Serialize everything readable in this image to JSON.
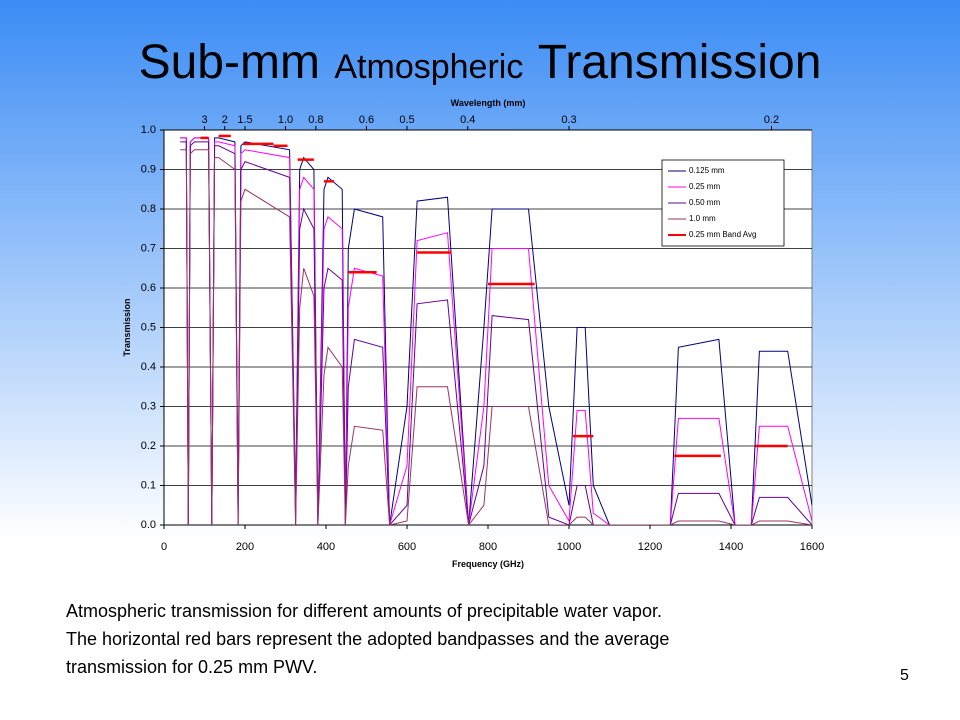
{
  "slide": {
    "title_parts": [
      "Sub-mm",
      "Atmospheric",
      "Transmission"
    ],
    "caption": [
      "Atmospheric transmission for different amounts of precipitable water vapor.",
      "The horizontal red bars represent the adopted bandpasses and the average",
      "transmission for 0.25 mm PWV."
    ],
    "page_number": "5"
  },
  "chart_data": {
    "type": "line",
    "x_label": "Frequency (GHz)",
    "y_label": "Transmission",
    "x2_label": "Wavelength (mm)",
    "xlim": [
      0,
      1600
    ],
    "xticks": [
      0,
      200,
      400,
      600,
      800,
      1000,
      1200,
      1400,
      1600
    ],
    "ylim": [
      0,
      1
    ],
    "yticks": [
      {
        "value": 0,
        "label": "0.0"
      },
      0.1,
      0.2,
      0.3,
      0.4,
      0.5,
      0.6,
      0.7,
      0.8,
      0.9,
      {
        "value": 1,
        "label": "1.0"
      }
    ],
    "x2ticks": [
      3,
      2,
      1.5,
      {
        "value": 1,
        "label": "1.0"
      },
      0.8,
      0.6,
      0.5,
      0.4,
      0.3,
      0.2
    ],
    "grid": true,
    "legend": "upper right",
    "x": [
      40,
      55,
      60,
      65,
      75,
      110,
      118,
      125,
      135,
      175,
      183,
      190,
      200,
      310,
      325,
      335,
      345,
      370,
      380,
      395,
      405,
      440,
      448,
      455,
      470,
      540,
      557,
      600,
      625,
      700,
      752,
      790,
      810,
      900,
      950,
      1000,
      1020,
      1040,
      1060,
      1100,
      1250,
      1270,
      1370,
      1410,
      1450,
      1470,
      1540,
      1600
    ],
    "series": [
      {
        "name": "0.125 mm",
        "color": "#000080",
        "values": [
          0.98,
          0.98,
          0,
          0.97,
          0.98,
          0.98,
          0,
          0.98,
          0.98,
          0.97,
          0.05,
          0.96,
          0.97,
          0.95,
          0.05,
          0.9,
          0.93,
          0.9,
          0,
          0.85,
          0.88,
          0.85,
          0,
          0.7,
          0.8,
          0.78,
          0,
          0.3,
          0.82,
          0.83,
          0,
          0.5,
          0.8,
          0.8,
          0.3,
          0.05,
          0.5,
          0.5,
          0.1,
          0,
          0,
          0.45,
          0.47,
          0,
          0,
          0.44,
          0.44,
          0.05
        ]
      },
      {
        "name": "0.25 mm",
        "color": "#ff00ff",
        "values": [
          0.98,
          0.98,
          0,
          0.97,
          0.98,
          0.98,
          0,
          0.97,
          0.97,
          0.96,
          0,
          0.94,
          0.95,
          0.93,
          0.02,
          0.85,
          0.88,
          0.85,
          0,
          0.75,
          0.78,
          0.75,
          0,
          0.55,
          0.65,
          0.63,
          0,
          0.15,
          0.72,
          0.74,
          0,
          0.3,
          0.7,
          0.7,
          0.1,
          0.01,
          0.29,
          0.29,
          0.03,
          0,
          0,
          0.27,
          0.27,
          0,
          0,
          0.25,
          0.25,
          0.01
        ]
      },
      {
        "name": "0.50 mm",
        "color": "#660099",
        "values": [
          0.97,
          0.97,
          0,
          0.96,
          0.97,
          0.97,
          0,
          0.96,
          0.96,
          0.94,
          0,
          0.9,
          0.92,
          0.88,
          0,
          0.75,
          0.8,
          0.75,
          0,
          0.6,
          0.65,
          0.62,
          0,
          0.35,
          0.47,
          0.45,
          0,
          0.05,
          0.56,
          0.57,
          0,
          0.15,
          0.53,
          0.52,
          0.02,
          0,
          0.1,
          0.1,
          0,
          0,
          0,
          0.08,
          0.08,
          0,
          0,
          0.07,
          0.07,
          0
        ]
      },
      {
        "name": "1.0 mm",
        "color": "#993366",
        "values": [
          0.95,
          0.95,
          0,
          0.94,
          0.95,
          0.95,
          0,
          0.93,
          0.93,
          0.9,
          0,
          0.82,
          0.85,
          0.78,
          0,
          0.55,
          0.65,
          0.58,
          0,
          0.38,
          0.45,
          0.4,
          0,
          0.15,
          0.25,
          0.24,
          0,
          0.01,
          0.35,
          0.35,
          0,
          0.05,
          0.3,
          0.3,
          0,
          0,
          0.02,
          0.02,
          0,
          0,
          0,
          0.01,
          0.01,
          0,
          0,
          0.01,
          0.01,
          0
        ]
      }
    ],
    "bands": {
      "name": "0.25 mm Band Avg",
      "color": "#ff0000",
      "ranges": [
        [
          90,
          110
        ],
        [
          135,
          165
        ],
        [
          195,
          240
        ],
        [
          240,
          270
        ],
        [
          270,
          305
        ],
        [
          330,
          370
        ],
        [
          395,
          420
        ],
        [
          455,
          525
        ],
        [
          625,
          710
        ],
        [
          800,
          915
        ],
        [
          1010,
          1060
        ],
        [
          1260,
          1375
        ],
        [
          1460,
          1540
        ]
      ],
      "values": [
        0.98,
        0.985,
        0.965,
        0.965,
        0.96,
        0.925,
        0.87,
        0.64,
        0.69,
        0.61,
        0.225,
        0.175,
        0.2
      ]
    }
  }
}
